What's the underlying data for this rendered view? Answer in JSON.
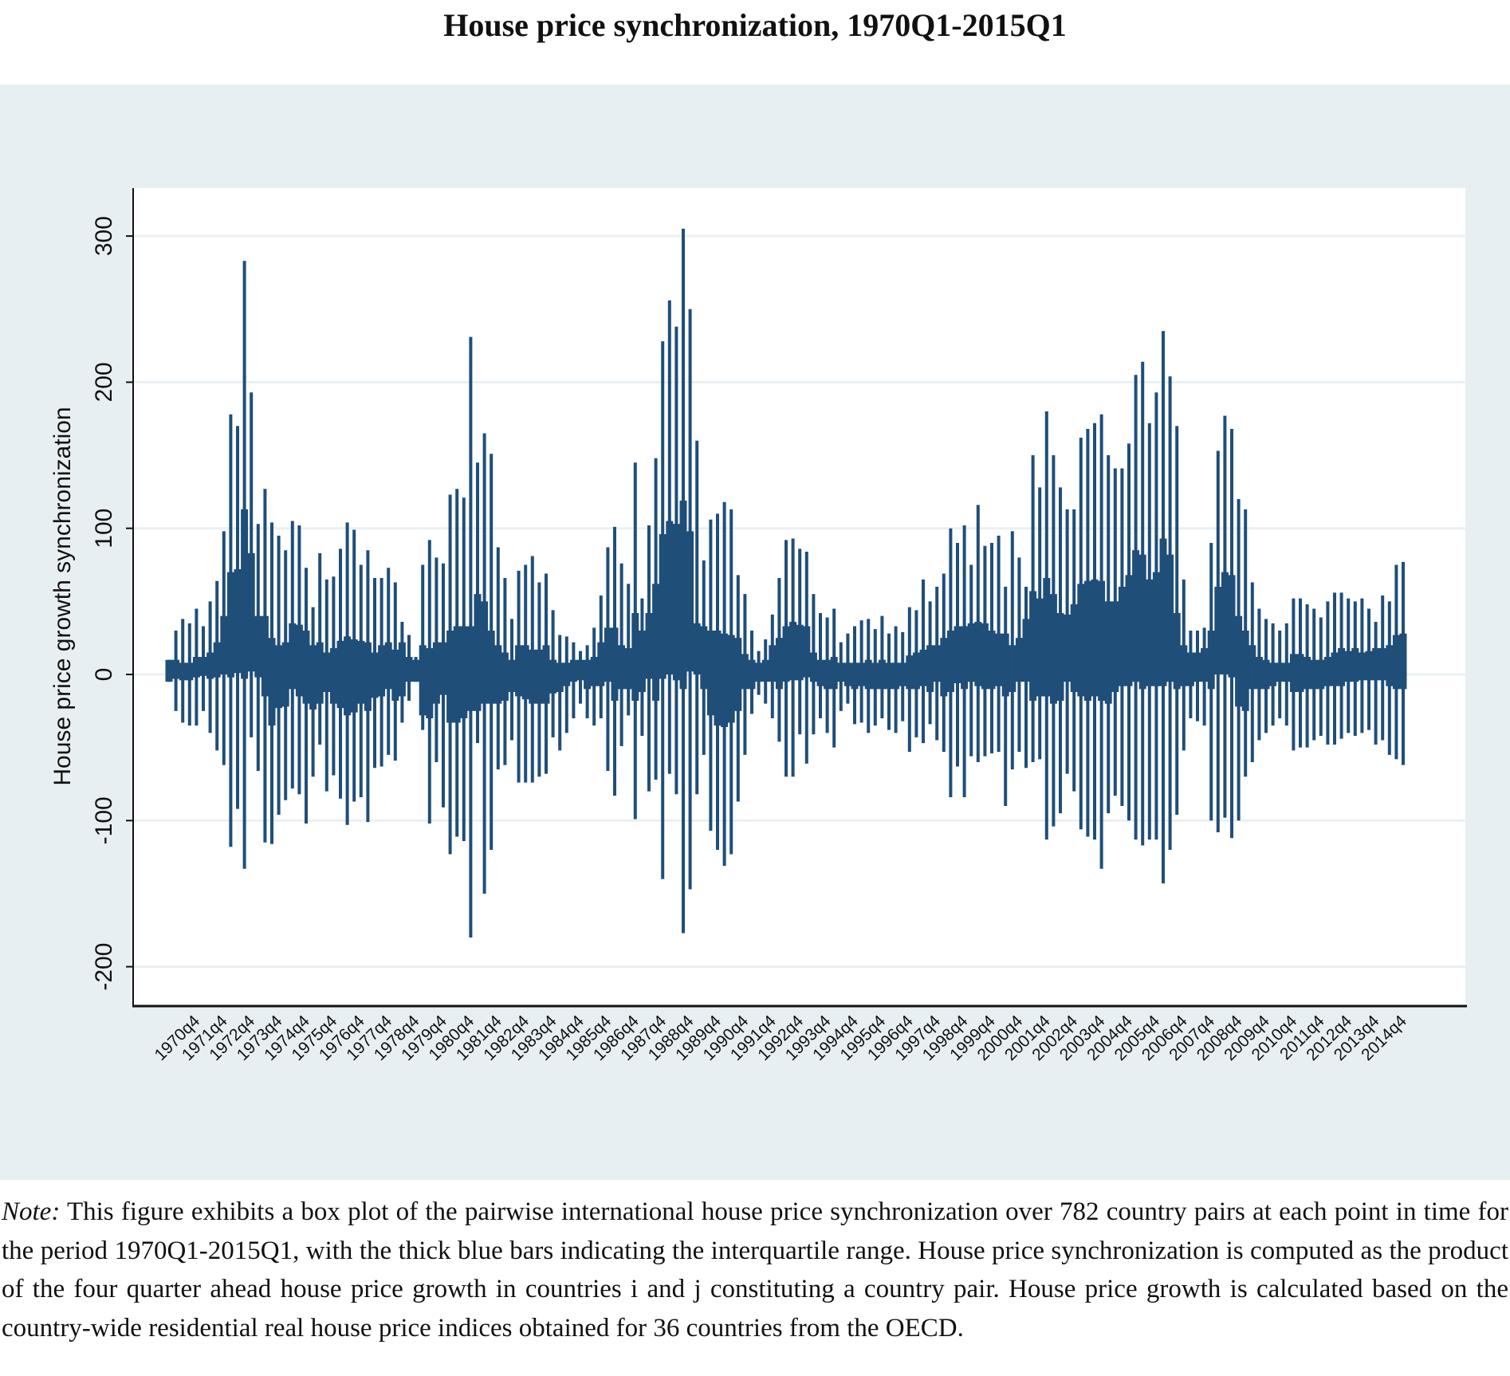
{
  "title": "House price synchronization, 1970Q1-2015Q1",
  "note": {
    "label": "Note:",
    "text": "This figure exhibits a box plot of the pairwise international house price synchronization over 782 country pairs at each point in time for the period 1970Q1-2015Q1, with the thick blue bars indicating the interquartile range. House price synchronization is computed as the product of the four quarter ahead house price growth in countries i and j constituting a country pair.  House price growth is calculated based on the country-wide residential real house price indices obtained for 36 countries from the OECD."
  },
  "colors": {
    "box": "#1f4e79",
    "panel": "#e8eff2",
    "grid": "#eaf0f4"
  },
  "chart_data": {
    "type": "box",
    "title": "House price synchronization, 1970Q1-2015Q1",
    "ylabel": "House price growth synchronization",
    "xlabel": "",
    "ylim": [
      -225,
      330
    ],
    "yticks": [
      -200,
      -100,
      0,
      100,
      200,
      300
    ],
    "grid": true,
    "x_range": [
      "1970q1",
      "2015q1"
    ],
    "xtick_labels": [
      "1970q4",
      "1971q4",
      "1972q4",
      "1973q4",
      "1974q4",
      "1975q4",
      "1976q4",
      "1977q4",
      "1978q4",
      "1979q4",
      "1980q4",
      "1981q4",
      "1982q4",
      "1983q4",
      "1984q4",
      "1985q4",
      "1986q4",
      "1987q4",
      "1988q4",
      "1989q4",
      "1990q4",
      "1991q4",
      "1992q4",
      "1993q4",
      "1994q4",
      "1995q4",
      "1996q4",
      "1997q4",
      "1998q4",
      "1999q4",
      "2000q4",
      "2001q4",
      "2002q4",
      "2003q4",
      "2004q4",
      "2005q4",
      "2006q4",
      "2007q4",
      "2008q4",
      "2009q4",
      "2010q4",
      "2011q4",
      "2012q4",
      "2013q4",
      "2014q4"
    ],
    "whisker_high": [
      10,
      30,
      38,
      35,
      45,
      33,
      50,
      64,
      98,
      178,
      170,
      283,
      193,
      103,
      127,
      104,
      95,
      85,
      105,
      102,
      73,
      46,
      83,
      65,
      67,
      86,
      104,
      99,
      75,
      85,
      66,
      66,
      73,
      63,
      36,
      27,
      12,
      75,
      92,
      80,
      76,
      123,
      127,
      121,
      231,
      145,
      165,
      151,
      87,
      66,
      38,
      71,
      75,
      81,
      63,
      69,
      44,
      27,
      26,
      22,
      16,
      20,
      32,
      54,
      87,
      101,
      76,
      62,
      145,
      52,
      102,
      148,
      228,
      256,
      238,
      305,
      250,
      160,
      78,
      106,
      110,
      118,
      113,
      68,
      55,
      30,
      16,
      24,
      41,
      66,
      92,
      93,
      86,
      84,
      55,
      42,
      39,
      45,
      22,
      28,
      33,
      37,
      38,
      31,
      40,
      28,
      33,
      29,
      46,
      44,
      65,
      50,
      60,
      69,
      100,
      90,
      102,
      75,
      116,
      88,
      90,
      95,
      60,
      98,
      80,
      60,
      150,
      128,
      180,
      150,
      128,
      113,
      113,
      162,
      168,
      172,
      178,
      150,
      141,
      141,
      158,
      205,
      214,
      172,
      193,
      235,
      204,
      170,
      65,
      30,
      30,
      32,
      90,
      153,
      177,
      168,
      120,
      113,
      63,
      45,
      38,
      35,
      30,
      35,
      52,
      52,
      48,
      45,
      39,
      50,
      56,
      56,
      52,
      50,
      52,
      45,
      36,
      54,
      50,
      75,
      77
    ],
    "q3": [
      10,
      10,
      8,
      8,
      12,
      12,
      15,
      22,
      40,
      70,
      72,
      113,
      83,
      40,
      40,
      25,
      20,
      22,
      35,
      34,
      30,
      20,
      22,
      15,
      18,
      23,
      26,
      24,
      23,
      22,
      15,
      20,
      22,
      17,
      22,
      12,
      10,
      20,
      18,
      22,
      22,
      30,
      33,
      33,
      33,
      55,
      50,
      30,
      20,
      15,
      10,
      20,
      20,
      17,
      17,
      20,
      10,
      8,
      8,
      10,
      10,
      10,
      12,
      22,
      32,
      32,
      20,
      18,
      42,
      30,
      42,
      62,
      96,
      105,
      103,
      119,
      98,
      35,
      33,
      30,
      30,
      28,
      27,
      25,
      14,
      10,
      8,
      10,
      20,
      25,
      33,
      36,
      34,
      33,
      15,
      10,
      10,
      12,
      8,
      8,
      8,
      8,
      10,
      8,
      10,
      8,
      8,
      8,
      13,
      15,
      17,
      20,
      20,
      25,
      30,
      33,
      33,
      35,
      36,
      35,
      30,
      28,
      28,
      20,
      25,
      38,
      57,
      52,
      66,
      55,
      42,
      41,
      48,
      62,
      64,
      65,
      64,
      50,
      50,
      60,
      68,
      85,
      82,
      65,
      70,
      93,
      82,
      42,
      20,
      15,
      15,
      18,
      30,
      60,
      70,
      68,
      40,
      30,
      20,
      12,
      10,
      8,
      8,
      8,
      14,
      14,
      12,
      10,
      10,
      12,
      15,
      18,
      16,
      18,
      15,
      16,
      18,
      18,
      20,
      27,
      28
    ],
    "q1": [
      -5,
      -3,
      -4,
      -4,
      -2,
      -1,
      -3,
      -2,
      0,
      -2,
      1,
      -3,
      2,
      -2,
      -15,
      -35,
      -23,
      -22,
      -10,
      -15,
      -20,
      -24,
      -20,
      -12,
      -20,
      -23,
      -28,
      -26,
      -20,
      -25,
      -16,
      -15,
      -10,
      -18,
      -15,
      -5,
      -5,
      -28,
      -30,
      -20,
      -14,
      -33,
      -33,
      -30,
      -25,
      -25,
      -20,
      -20,
      -20,
      -18,
      -12,
      -15,
      -17,
      -20,
      -20,
      -20,
      -13,
      -12,
      -8,
      -5,
      -4,
      -10,
      -8,
      -8,
      -5,
      -18,
      -10,
      -10,
      -18,
      -12,
      -3,
      -18,
      -3,
      0,
      -4,
      -10,
      2,
      0,
      -10,
      -28,
      -35,
      -36,
      -33,
      -25,
      -10,
      -10,
      -5,
      -5,
      -5,
      -10,
      -5,
      -4,
      -4,
      -2,
      -5,
      -8,
      -10,
      -10,
      -5,
      -8,
      -10,
      -8,
      -10,
      -10,
      -10,
      -10,
      -10,
      -8,
      -10,
      -10,
      -8,
      -12,
      -5,
      -15,
      -12,
      -6,
      -10,
      -5,
      -8,
      -10,
      -10,
      -8,
      -15,
      -12,
      -5,
      -5,
      -18,
      -15,
      -15,
      -20,
      -18,
      -5,
      -12,
      -15,
      -18,
      -15,
      -18,
      -20,
      -12,
      -8,
      -8,
      -5,
      -10,
      -8,
      -8,
      -8,
      -5,
      -10,
      -8,
      -8,
      -5,
      -5,
      -10,
      0,
      0,
      -2,
      -22,
      -25,
      -10,
      -10,
      -10,
      -8,
      -5,
      -5,
      -12,
      -12,
      -10,
      -10,
      -10,
      -8,
      -8,
      -8,
      -5,
      -5,
      -4,
      -4,
      -4,
      -4,
      -8,
      -10,
      -10
    ],
    "whisker_low": [
      -5,
      -25,
      -33,
      -35,
      -35,
      -25,
      -40,
      -52,
      -62,
      -118,
      -92,
      -133,
      -43,
      -66,
      -115,
      -116,
      -96,
      -86,
      -78,
      -82,
      -102,
      -70,
      -48,
      -80,
      -69,
      -85,
      -103,
      -87,
      -84,
      -101,
      -64,
      -63,
      -55,
      -59,
      -33,
      -18,
      -5,
      -38,
      -102,
      -60,
      -91,
      -123,
      -111,
      -114,
      -180,
      -47,
      -150,
      -120,
      -65,
      -62,
      -45,
      -74,
      -74,
      -74,
      -70,
      -68,
      -43,
      -52,
      -40,
      -30,
      -20,
      -30,
      -35,
      -30,
      -66,
      -83,
      -49,
      -28,
      -99,
      -42,
      -80,
      -72,
      -140,
      -68,
      -82,
      -177,
      -147,
      -82,
      -55,
      -107,
      -120,
      -131,
      -123,
      -87,
      -55,
      -27,
      -14,
      -20,
      -30,
      -46,
      -70,
      -70,
      -41,
      -61,
      -41,
      -30,
      -40,
      -50,
      -25,
      -20,
      -34,
      -33,
      -40,
      -35,
      -30,
      -38,
      -40,
      -32,
      -53,
      -43,
      -47,
      -34,
      -45,
      -53,
      -84,
      -63,
      -84,
      -56,
      -60,
      -56,
      -54,
      -53,
      -90,
      -65,
      -53,
      -64,
      -60,
      -58,
      -113,
      -104,
      -95,
      -68,
      -80,
      -106,
      -111,
      -113,
      -133,
      -95,
      -83,
      -90,
      -100,
      -113,
      -117,
      -113,
      -113,
      -143,
      -120,
      -96,
      -52,
      -30,
      -32,
      -35,
      -100,
      -108,
      -98,
      -112,
      -100,
      -70,
      -60,
      -45,
      -40,
      -35,
      -30,
      -35,
      -52,
      -50,
      -50,
      -45,
      -42,
      -48,
      -48,
      -44,
      -40,
      -42,
      -40,
      -38,
      -48,
      -45,
      -55,
      -58,
      -62
    ]
  }
}
